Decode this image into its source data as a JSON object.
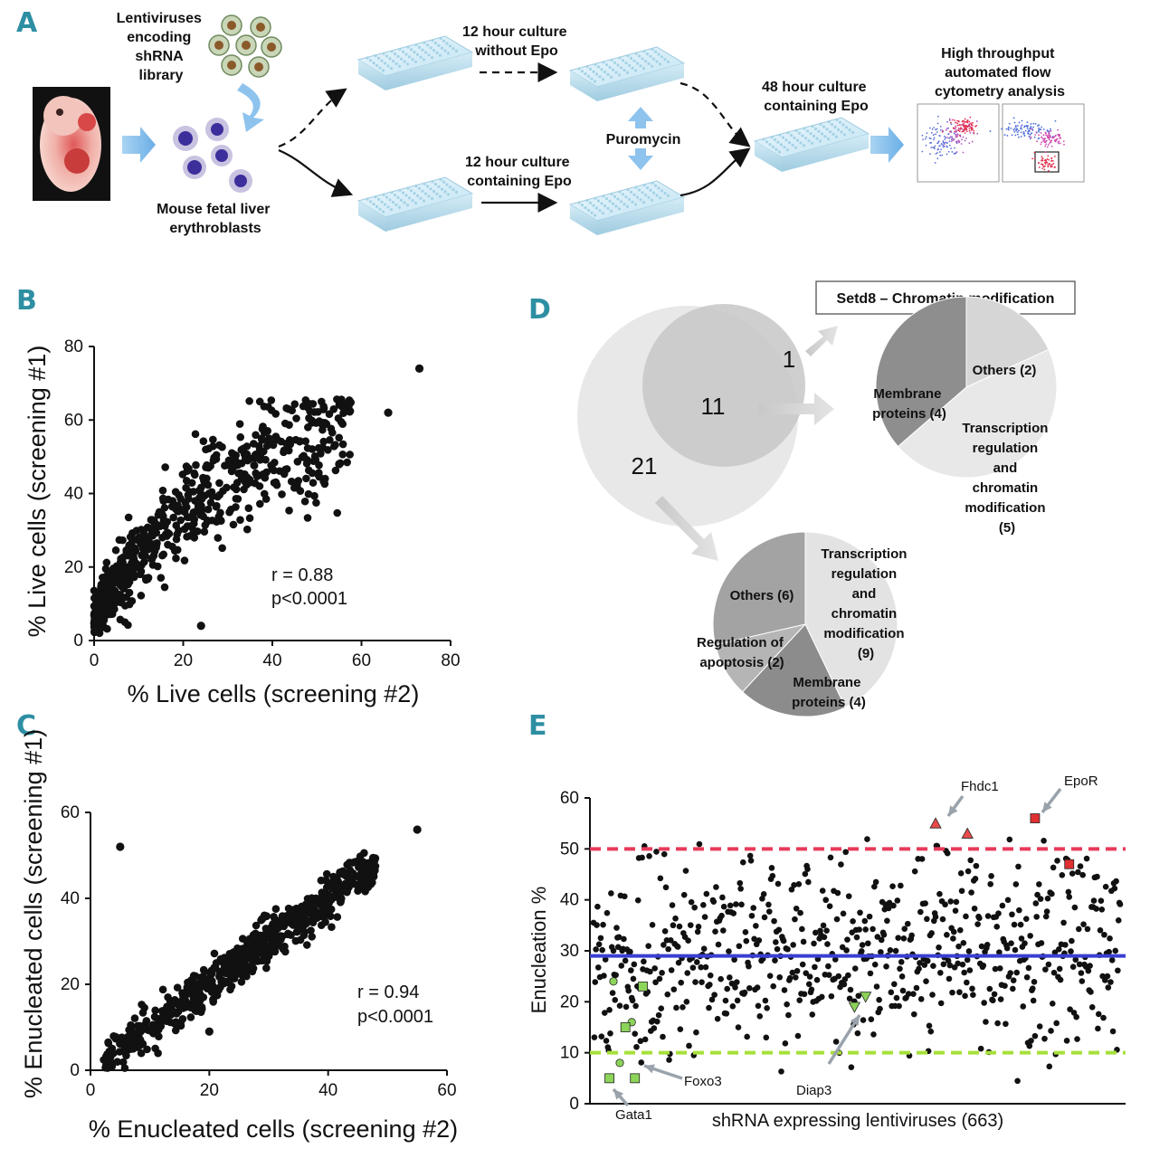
{
  "panels": {
    "A": {
      "label": "A",
      "lentiviruses": [
        "Lentiviruses",
        "encoding",
        "shRNA",
        "library"
      ],
      "liver": [
        "Mouse fetal liver",
        "erythroblasts"
      ],
      "without_epo": [
        "12 hour culture",
        "without Epo"
      ],
      "with_epo": [
        "12 hour culture",
        "containing Epo"
      ],
      "puromycin": "Puromycin",
      "culture48": [
        "48 hour culture",
        "containing Epo"
      ],
      "flow": [
        "High throughput",
        "automated flow",
        "cytometry analysis"
      ]
    },
    "B": {
      "label": "B"
    },
    "C": {
      "label": "C"
    },
    "D": {
      "label": "D",
      "setd8": "Setd8 – Chromatin modification",
      "venn": {
        "right_only": "1",
        "overlap": "11",
        "left_only": "21"
      },
      "pie1": {
        "slices": [
          {
            "name": "Others (2)",
            "value": 2,
            "color": "#d6d6d6"
          },
          {
            "name": "Transcription regulation and chromatin modification (5)",
            "value": 5,
            "color": "#e8e8e8"
          },
          {
            "name": "Membrane proteins (4)",
            "value": 4,
            "color": "#8e8e8e"
          }
        ],
        "labels": {
          "others": "Others (2)",
          "transcription": [
            "Transcription",
            "regulation",
            "and",
            "chromatin",
            "modification",
            "(5)"
          ],
          "membrane": [
            "Membrane",
            "proteins (4)"
          ]
        }
      },
      "pie2": {
        "slices": [
          {
            "name": "Transcription regulation and chromatin modification (9)",
            "value": 9,
            "color": "#e3e3e3"
          },
          {
            "name": "Membrane proteins (4)",
            "value": 4,
            "color": "#8c8c8c"
          },
          {
            "name": "Regulation of apoptosis (2)",
            "value": 2,
            "color": "#b5b5b5"
          },
          {
            "name": "Others (6)",
            "value": 6,
            "color": "#a3a3a3"
          }
        ],
        "labels": {
          "transcription": [
            "Transcription",
            "regulation",
            "and",
            "chromatin",
            "modification",
            "(9)"
          ],
          "others": "Others (6)",
          "apoptosis": [
            "Regulation of",
            "apoptosis (2)"
          ],
          "membrane": [
            "Membrane",
            "proteins (4)"
          ]
        }
      }
    },
    "E": {
      "label": "E"
    }
  },
  "chart_data": [
    {
      "id": "B",
      "type": "scatter",
      "title": "",
      "xlabel": "% Live cells (screening #2)",
      "ylabel": "% Live cells (screening #1)",
      "xlim": [
        0,
        80
      ],
      "ylim": [
        0,
        80
      ],
      "xticks": [
        "0",
        "20",
        "40",
        "60",
        "80"
      ],
      "yticks": [
        "0",
        "20",
        "40",
        "60",
        "80"
      ],
      "annotation": [
        "r = 0.88",
        "p<0.0001"
      ],
      "n_points_shown": 663,
      "outliers": [
        {
          "x": 73,
          "y": 74
        },
        {
          "x": 66,
          "y": 62
        },
        {
          "x": 24,
          "y": 4
        },
        {
          "x": 55,
          "y": 48
        }
      ],
      "trend": "positive, saturating; most points between 0-60 on both axes"
    },
    {
      "id": "C",
      "type": "scatter",
      "title": "",
      "xlabel": "% Enucleated cells (screening #2)",
      "ylabel": "% Enucleated cells (screening #1)",
      "xlim": [
        0,
        60
      ],
      "ylim": [
        0,
        60
      ],
      "xticks": [
        "0",
        "20",
        "40",
        "60"
      ],
      "yticks": [
        "0",
        "20",
        "40",
        "60"
      ],
      "annotation": [
        "r = 0.94",
        "p<0.0001"
      ],
      "n_points_shown": 663,
      "outliers": [
        {
          "x": 5,
          "y": 52
        },
        {
          "x": 55,
          "y": 56
        },
        {
          "x": 42,
          "y": 46
        },
        {
          "x": 20,
          "y": 9
        }
      ],
      "trend": "tight linear y ≈ x from 0 to ~50"
    },
    {
      "id": "E",
      "type": "scatter",
      "title": "",
      "xlabel": "shRNA expressing lentiviruses  (663)",
      "ylabel": "Enucleation %",
      "ylim": [
        0,
        60
      ],
      "yticks": [
        "0",
        "10",
        "20",
        "30",
        "40",
        "50",
        "60"
      ],
      "n_points": 663,
      "reference_lines": [
        {
          "y": 50,
          "style": "dashed",
          "color": "#e83a5b"
        },
        {
          "y": 29,
          "style": "solid",
          "color": "#3a3fd1"
        },
        {
          "y": 10,
          "style": "dashed",
          "color": "#a6e03a"
        }
      ],
      "highlights": [
        {
          "name": "Fhdc1",
          "marker": "triangle",
          "color": "#e84a4a",
          "points": [
            {
              "i": 430,
              "y": 55
            },
            {
              "i": 470,
              "y": 53
            }
          ]
        },
        {
          "name": "EpoR",
          "marker": "square",
          "color": "#e03030",
          "points": [
            {
              "i": 555,
              "y": 56
            },
            {
              "i": 598,
              "y": 47
            }
          ]
        },
        {
          "name": "Diap3",
          "marker": "triangle-down",
          "color": "#8cd45a",
          "points": [
            {
              "i": 328,
              "y": 19
            },
            {
              "i": 342,
              "y": 21
            }
          ]
        },
        {
          "name": "Foxo3",
          "marker": "circle",
          "color": "#8cd45a",
          "points": [
            {
              "i": 25,
              "y": 24
            },
            {
              "i": 33,
              "y": 8
            },
            {
              "i": 48,
              "y": 16
            }
          ]
        },
        {
          "name": "Gata1",
          "marker": "square",
          "color": "#8cd45a",
          "points": [
            {
              "i": 20,
              "y": 5
            },
            {
              "i": 40,
              "y": 15
            },
            {
              "i": 52,
              "y": 5
            },
            {
              "i": 62,
              "y": 23
            }
          ]
        }
      ],
      "labels": {
        "Fhdc1": "Fhdc1",
        "EpoR": "EpoR",
        "Diap3": "Diap3",
        "Foxo3": "Foxo3",
        "Gata1": "Gata1"
      }
    }
  ]
}
